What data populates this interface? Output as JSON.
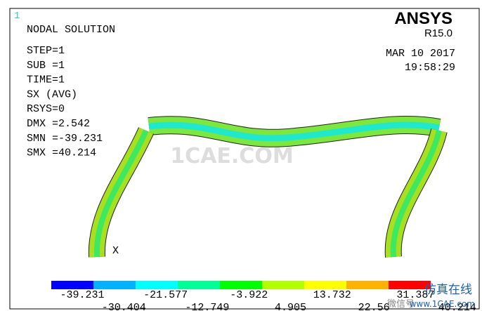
{
  "window": {
    "number": "1"
  },
  "info": {
    "title": "NODAL SOLUTION",
    "lines": [
      "STEP=1",
      "SUB =1",
      "TIME=1",
      "SX        (AVG)",
      "RSYS=0",
      "DMX =2.542",
      "SMN =-39.231",
      "SMX =40.214"
    ]
  },
  "logo": {
    "name": "ANSYS",
    "release": "R15.0"
  },
  "timestamp": {
    "date": "MAR 10 2017",
    "time": "19:58:29"
  },
  "axis_label": "X",
  "legend": {
    "colors": [
      "#0000ff",
      "#00b2ff",
      "#00ffff",
      "#00ff94",
      "#00ff00",
      "#b2ff00",
      "#ffff00",
      "#ffb200",
      "#ff0000"
    ],
    "labels": [
      "-39.231",
      "-30.404",
      "-21.577",
      "-12.749",
      "-3.922",
      "4.905",
      "13.732",
      "22.56",
      "31.387",
      "40.214"
    ]
  },
  "watermark": {
    "center": "1CAE.COM",
    "brand": "仿真在线",
    "url": "www.1CAE.com",
    "wechat": "微信号"
  }
}
